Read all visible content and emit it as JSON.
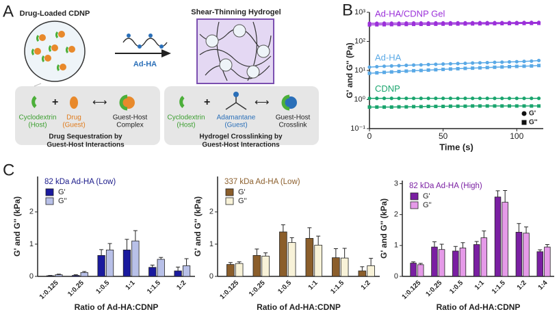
{
  "panel_a": {
    "label": "A",
    "left_title": "Drug-Loaded CDNP",
    "right_title": "Shear-Thinning Hydrogel",
    "polymer": "Ad-HA",
    "left_box": {
      "host": [
        "Cyclodextrin",
        "(Host)"
      ],
      "guest": [
        "Drug",
        "(Guest)"
      ],
      "complex": [
        "Guest-Host",
        "Complex"
      ],
      "caption": [
        "Drug Sequestration by",
        "Guest-Host Interactions"
      ]
    },
    "right_box": {
      "host": [
        "Cyclodextrin",
        "(Host)"
      ],
      "guest": [
        "Adamantane",
        "(Guest)"
      ],
      "complex": [
        "Guest-Host",
        "Crosslink"
      ],
      "caption": [
        "Hydrogel Crosslinking by",
        "Guest-Host Interactions"
      ]
    }
  },
  "chart_data": [
    {
      "panel": "B",
      "type": "line",
      "log_y": true,
      "x_label": "Time (s)",
      "y_label": "G' and G'' (Pa)",
      "x": [
        0,
        5,
        10,
        15,
        20,
        25,
        30,
        35,
        40,
        45,
        50,
        55,
        60,
        65,
        70,
        75,
        80,
        85,
        90,
        95,
        100,
        105,
        110,
        115
      ],
      "xlim": [
        0,
        118
      ],
      "xticks": [
        0,
        50,
        100
      ],
      "ylim": [
        0.1,
        1000
      ],
      "yticks": [
        {
          "value": 0.1,
          "label": "10⁻¹"
        },
        {
          "value": 1,
          "label": "10⁰"
        },
        {
          "value": 10,
          "label": "10¹"
        },
        {
          "value": 100,
          "label": "10²"
        },
        {
          "value": 1000,
          "label": "10³"
        }
      ],
      "legend": [
        {
          "label": "G'",
          "marker": "circle"
        },
        {
          "label": "G''",
          "marker": "square"
        }
      ],
      "series": [
        {
          "name": "Ad-HA/CDNP Gel",
          "color": "#9b30d9",
          "storage": [
            420,
            420,
            425,
            425,
            425,
            428,
            430,
            430,
            430,
            432,
            432,
            435,
            435,
            435,
            438,
            440,
            440,
            440,
            442,
            445,
            445,
            448,
            450,
            450
          ],
          "loss": [
            370,
            372,
            375,
            378,
            380,
            382,
            385,
            386,
            388,
            390,
            392,
            394,
            396,
            398,
            400,
            402,
            404,
            406,
            408,
            410,
            412,
            414,
            416,
            418
          ]
        },
        {
          "name": "Ad-HA",
          "color": "#5aa9e6",
          "storage": [
            13,
            13.5,
            14,
            14.3,
            14.6,
            15,
            15.3,
            15.6,
            16,
            16.3,
            16.6,
            17,
            17.3,
            17.6,
            18,
            18.3,
            18.6,
            19,
            19.3,
            19.7,
            20,
            20.5,
            21,
            22
          ],
          "loss": [
            8,
            8.3,
            8.6,
            8.9,
            9.2,
            9.5,
            9.8,
            10,
            10.3,
            10.6,
            10.9,
            11.2,
            11.5,
            11.8,
            12,
            12.3,
            12.6,
            12.9,
            13.2,
            13.5,
            13.8,
            14,
            14.3,
            14.8
          ]
        },
        {
          "name": "CDNP",
          "color": "#1aa56e",
          "storage": [
            1.1,
            1.1,
            1.1,
            1.1,
            1.1,
            1.1,
            1.1,
            1.1,
            1.1,
            1.1,
            1.1,
            1.1,
            1.1,
            1.1,
            1.1,
            1.1,
            1.1,
            1.1,
            1.1,
            1.1,
            1.1,
            1.1,
            1.1,
            1.1
          ],
          "loss": [
            0.55,
            0.55,
            0.55,
            0.55,
            0.56,
            0.56,
            0.57,
            0.57,
            0.58,
            0.58,
            0.58,
            0.59,
            0.59,
            0.59,
            0.6,
            0.6,
            0.6,
            0.6,
            0.6,
            0.6,
            0.6,
            0.6,
            0.6,
            0.6
          ]
        }
      ]
    },
    {
      "panel": "C",
      "type": "bar",
      "title": "82 kDa Ad-HA (Low)",
      "title_color": "#1a1a8a",
      "x_label": "Ratio of Ad-HA:CDNP",
      "y_label": "G' and G'' (kPa)",
      "categories": [
        "1:0.125",
        "1:0.25",
        "1:0.5",
        "1:1",
        "1:1.5",
        "1:2"
      ],
      "ylim": [
        0,
        3.1
      ],
      "yticks": [
        0,
        1,
        2
      ],
      "series": [
        {
          "name": "G'",
          "color": "#1a1a9e",
          "values": [
            0.02,
            0.03,
            0.65,
            0.82,
            0.28,
            0.17
          ],
          "errors": [
            0.01,
            0.02,
            0.18,
            0.33,
            0.07,
            0.12
          ]
        },
        {
          "name": "G''",
          "color": "#b8c0e8",
          "values": [
            0.05,
            0.12,
            0.82,
            1.1,
            0.53,
            0.33
          ],
          "errors": [
            0.02,
            0.03,
            0.2,
            0.32,
            0.06,
            0.22
          ]
        }
      ]
    },
    {
      "type": "bar",
      "title": "337 kDa Ad-HA (Low)",
      "title_color": "#8b5e2b",
      "x_label": "Ratio of Ad-HA:CDNP",
      "y_label": "G' and G'' (kPa)",
      "categories": [
        "1:0.125",
        "1:0.25",
        "1:0.5",
        "1:1",
        "1:1.5",
        "1:2"
      ],
      "ylim": [
        0,
        3.1
      ],
      "yticks": [
        0,
        1,
        2
      ],
      "series": [
        {
          "name": "G'",
          "color": "#8b5e2b",
          "values": [
            0.37,
            0.65,
            1.38,
            1.18,
            0.58,
            0.17
          ],
          "errors": [
            0.06,
            0.2,
            0.22,
            0.33,
            0.28,
            0.13
          ]
        },
        {
          "name": "G''",
          "color": "#f8f2d8",
          "values": [
            0.4,
            0.63,
            1.05,
            0.97,
            0.57,
            0.33
          ],
          "errors": [
            0.05,
            0.1,
            0.15,
            0.28,
            0.3,
            0.23
          ]
        }
      ]
    },
    {
      "type": "bar",
      "title": "82 kDa Ad-HA (High)",
      "title_color": "#7a1fa2",
      "x_label": "Ratio of Ad-HA:CDNP",
      "y_label": "G' and G'' (kPa)",
      "categories": [
        "1:0.125",
        "1:0.25",
        "1:0.5",
        "1:1",
        "1:1.5",
        "1:2",
        "1:4"
      ],
      "ylim": [
        0,
        3.1
      ],
      "yticks": [
        0,
        1,
        2,
        3
      ],
      "series": [
        {
          "name": "G'",
          "color": "#7a1fa2",
          "values": [
            0.43,
            0.95,
            0.82,
            1.03,
            2.57,
            1.43,
            0.8
          ],
          "errors": [
            0.04,
            0.17,
            0.15,
            0.1,
            0.2,
            0.28,
            0.06
          ]
        },
        {
          "name": "G''",
          "color": "#e59ae8",
          "values": [
            0.38,
            0.87,
            0.92,
            1.25,
            2.4,
            1.4,
            0.95
          ],
          "errors": [
            0.04,
            0.17,
            0.17,
            0.22,
            0.38,
            0.2,
            0.08
          ]
        }
      ]
    }
  ]
}
